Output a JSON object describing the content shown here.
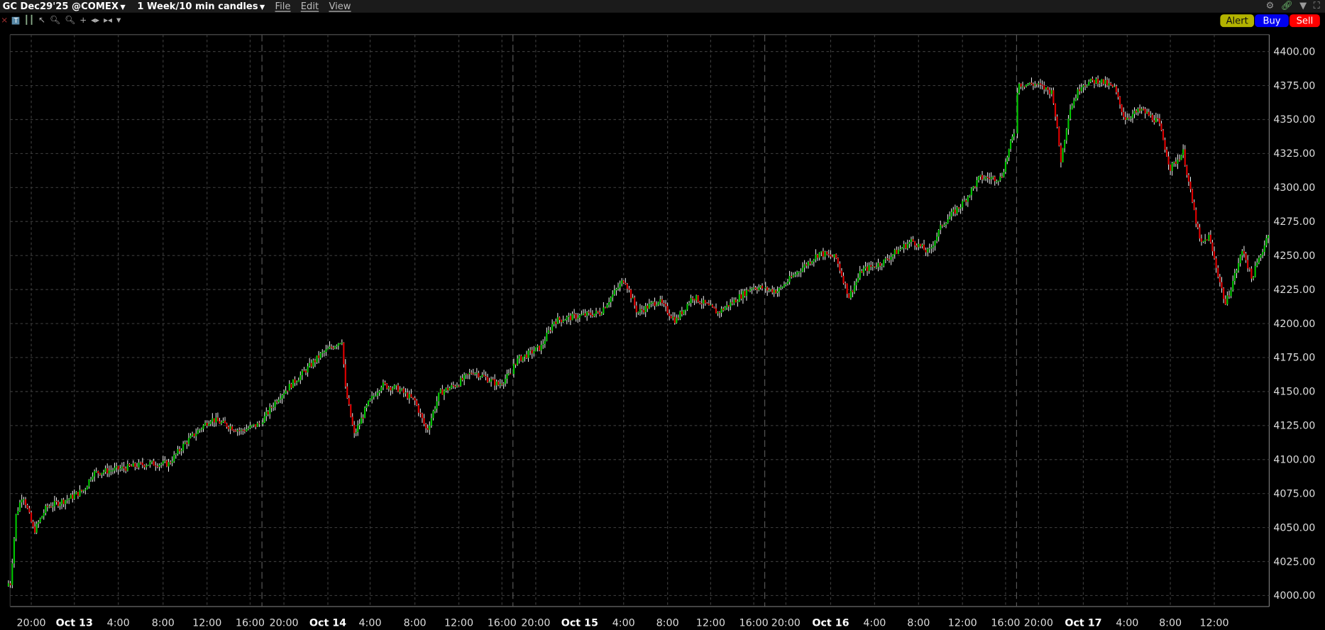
{
  "header": {
    "instrument": "GC Dec29'25 @COMEX",
    "period": "1 Week/10 min candles",
    "menus": [
      "File",
      "Edit",
      "View"
    ],
    "icons": [
      "gear-icon",
      "link-icon",
      "dropdown-icon",
      "fullscreen-icon"
    ]
  },
  "toolbar": {
    "icons": [
      "close-icon",
      "text-tool-icon",
      "bar-style-icon",
      "pointer-draw-icon",
      "zoom-in-icon",
      "zoom-out-icon",
      "crosshair-icon",
      "expand-icon",
      "contract-icon",
      "dropdown-icon"
    ]
  },
  "actions": {
    "alert": "Alert",
    "buy": "Buy",
    "sell": "Sell"
  },
  "colors": {
    "up": "#00c800",
    "down": "#e00000",
    "wick": "#ffffff",
    "grid": "#3a3a3a",
    "background": "#000000"
  },
  "chart_data": {
    "type": "candlestick",
    "ylim": [
      3990,
      4410
    ],
    "yticks": [
      "4000.00",
      "4025.00",
      "4050.00",
      "4075.00",
      "4100.00",
      "4125.00",
      "4150.00",
      "4175.00",
      "4200.00",
      "4225.00",
      "4250.00",
      "4275.00",
      "4300.00",
      "4325.00",
      "4350.00",
      "4375.00",
      "4400.00"
    ],
    "xticks": [
      {
        "label": "20:00",
        "time": "10-12 20:00"
      },
      {
        "label": "Oct 13",
        "time": "10-13 00:00",
        "bold": true
      },
      {
        "label": "4:00",
        "time": "10-13 04:00"
      },
      {
        "label": "8:00",
        "time": "10-13 08:00"
      },
      {
        "label": "12:00",
        "time": "10-13 12:00"
      },
      {
        "label": "16:00",
        "time": "10-13 16:00"
      },
      {
        "label": "20:00",
        "time": "10-13 20:00"
      },
      {
        "label": "Oct 14",
        "time": "10-14 00:00",
        "bold": true
      },
      {
        "label": "4:00",
        "time": "10-14 04:00"
      },
      {
        "label": "8:00",
        "time": "10-14 08:00"
      },
      {
        "label": "12:00",
        "time": "10-14 12:00"
      },
      {
        "label": "16:00",
        "time": "10-14 16:00"
      },
      {
        "label": "20:00",
        "time": "10-14 20:00"
      },
      {
        "label": "Oct 15",
        "time": "10-15 00:00",
        "bold": true
      },
      {
        "label": "4:00",
        "time": "10-15 04:00"
      },
      {
        "label": "8:00",
        "time": "10-15 08:00"
      },
      {
        "label": "12:00",
        "time": "10-15 12:00"
      },
      {
        "label": "16:00",
        "time": "10-15 16:00"
      },
      {
        "label": "20:00",
        "time": "10-15 20:00"
      },
      {
        "label": "Oct 16",
        "time": "10-16 00:00",
        "bold": true
      },
      {
        "label": "4:00",
        "time": "10-16 04:00"
      },
      {
        "label": "8:00",
        "time": "10-16 08:00"
      },
      {
        "label": "12:00",
        "time": "10-16 12:00"
      },
      {
        "label": "16:00",
        "time": "10-16 16:00"
      },
      {
        "label": "20:00",
        "time": "10-16 20:00"
      },
      {
        "label": "Oct 17",
        "time": "10-17 00:00",
        "bold": true
      },
      {
        "label": "4:00",
        "time": "10-17 04:00"
      },
      {
        "label": "8:00",
        "time": "10-17 08:00"
      },
      {
        "label": "12:00",
        "time": "10-17 12:00"
      }
    ],
    "price_path": [
      [
        "10-12 18:10",
        4009
      ],
      [
        "10-12 18:40",
        4059
      ],
      [
        "10-12 19:15",
        4075
      ],
      [
        "10-12 20:15",
        4047
      ],
      [
        "10-12 21:25",
        4065
      ],
      [
        "10-12 23:25",
        4071
      ],
      [
        "10-13 00:55",
        4078
      ],
      [
        "10-13 01:40",
        4090
      ],
      [
        "10-13 04:00",
        4093
      ],
      [
        "10-13 06:40",
        4097
      ],
      [
        "10-13 08:30",
        4097
      ],
      [
        "10-13 10:00",
        4112
      ],
      [
        "10-13 12:20",
        4130
      ],
      [
        "10-13 15:10",
        4121
      ],
      [
        "10-13 18:05",
        4130
      ],
      [
        "10-13 19:30",
        4146
      ],
      [
        "10-13 21:25",
        4161
      ],
      [
        "10-13 23:20",
        4177
      ],
      [
        "10-14 01:20",
        4188
      ],
      [
        "10-14 01:40",
        4152
      ],
      [
        "10-14 02:30",
        4118
      ],
      [
        "10-14 03:45",
        4140
      ],
      [
        "10-14 05:00",
        4155
      ],
      [
        "10-14 06:30",
        4152
      ],
      [
        "10-14 08:00",
        4143
      ],
      [
        "10-14 09:05",
        4121
      ],
      [
        "10-14 10:15",
        4149
      ],
      [
        "10-14 11:45",
        4155
      ],
      [
        "10-14 13:20",
        4165
      ],
      [
        "10-14 15:40",
        4155
      ],
      [
        "10-14 18:30",
        4174
      ],
      [
        "10-14 20:30",
        4183
      ],
      [
        "10-14 21:40",
        4202
      ],
      [
        "10-14 23:30",
        4205
      ],
      [
        "10-15 01:50",
        4208
      ],
      [
        "10-15 04:05",
        4233
      ],
      [
        "10-15 05:15",
        4208
      ],
      [
        "10-15 07:10",
        4217
      ],
      [
        "10-15 08:45",
        4202
      ],
      [
        "10-15 10:20",
        4220
      ],
      [
        "10-15 12:40",
        4208
      ],
      [
        "10-15 14:15",
        4217
      ],
      [
        "10-15 15:50",
        4227
      ],
      [
        "10-15 19:15",
        4224
      ],
      [
        "10-15 21:10",
        4239
      ],
      [
        "10-15 23:00",
        4252
      ],
      [
        "10-16 00:30",
        4248
      ],
      [
        "10-16 01:40",
        4220
      ],
      [
        "10-16 02:50",
        4239
      ],
      [
        "10-16 04:45",
        4245
      ],
      [
        "10-16 05:50",
        4252
      ],
      [
        "10-16 07:25",
        4261
      ],
      [
        "10-16 08:55",
        4252
      ],
      [
        "10-16 10:10",
        4273
      ],
      [
        "10-16 12:05",
        4289
      ],
      [
        "10-16 13:35",
        4307
      ],
      [
        "10-16 15:35",
        4307
      ],
      [
        "10-16 16:30",
        4332
      ],
      [
        "10-16 18:10",
        4376
      ],
      [
        "10-16 19:45",
        4376
      ],
      [
        "10-16 21:15",
        4370
      ],
      [
        "10-16 22:00",
        4320
      ],
      [
        "10-16 22:45",
        4357
      ],
      [
        "10-16 23:50",
        4376
      ],
      [
        "10-17 01:25",
        4379
      ],
      [
        "10-17 02:50",
        4373
      ],
      [
        "10-17 03:45",
        4351
      ],
      [
        "10-17 05:20",
        4357
      ],
      [
        "10-17 06:55",
        4348
      ],
      [
        "10-17 08:00",
        4314
      ],
      [
        "10-17 09:10",
        4326
      ],
      [
        "10-17 10:00",
        4289
      ],
      [
        "10-17 10:45",
        4258
      ],
      [
        "10-17 11:30",
        4264
      ],
      [
        "10-17 13:00",
        4214
      ],
      [
        "10-17 14:35",
        4255
      ],
      [
        "10-17 15:20",
        4233
      ],
      [
        "10-17 16:30",
        4258
      ],
      [
        "10-17 16:50",
        4267
      ]
    ]
  }
}
